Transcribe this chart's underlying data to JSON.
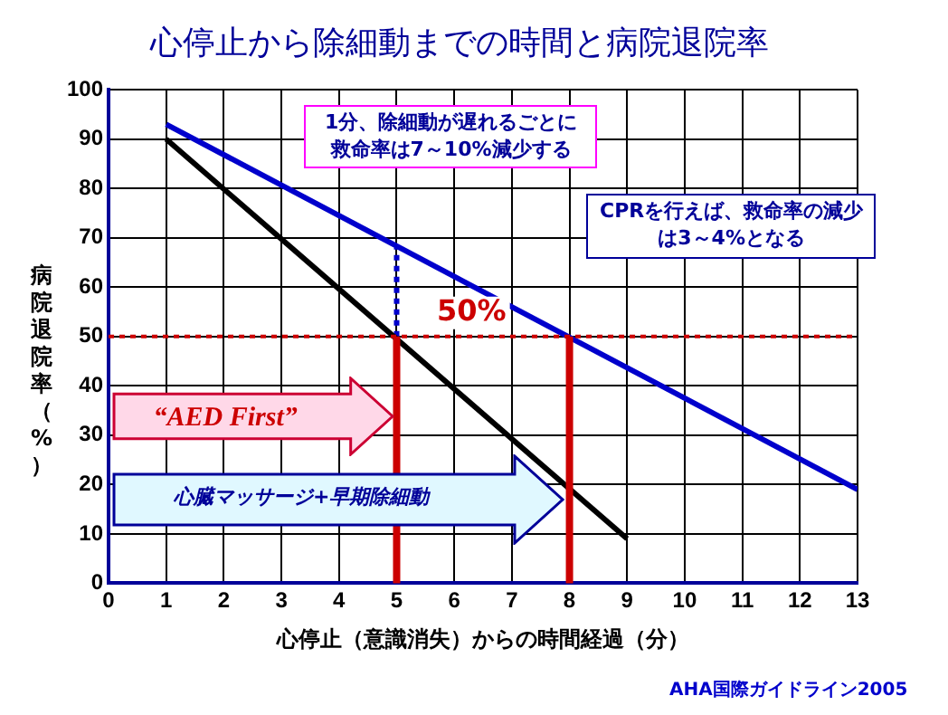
{
  "chart_data": {
    "type": "line",
    "title": "心停止から除細動までの時間と病院退院率",
    "xlabel": "心停止（意識消失）からの時間経過（分）",
    "ylabel": "病院退院率（%）",
    "series": [
      {
        "color": "#000000",
        "x": [
          1,
          9
        ],
        "values": [
          90,
          9
        ]
      },
      {
        "color": "#0000cc",
        "x": [
          1,
          13
        ],
        "values": [
          93,
          19
        ]
      },
      {
        "color": "#0000cc",
        "x": [
          5,
          5
        ],
        "values": [
          50,
          68
        ],
        "line_style": "dotted"
      }
    ],
    "xlim": [
      0,
      13
    ],
    "xticks": [
      0,
      1,
      2,
      3,
      4,
      5,
      6,
      7,
      8,
      9,
      10,
      11,
      12,
      13
    ],
    "ylim": [
      0,
      100
    ],
    "yticks": [
      0,
      10,
      20,
      30,
      40,
      50,
      60,
      70,
      80,
      90,
      100
    ],
    "grid": true,
    "legend": false,
    "marker": "none",
    "line_style": "solid",
    "ref_lines": [
      {
        "axis": "y",
        "value": 50,
        "label": "50%",
        "color": "#cc0000",
        "line_style": "dotted"
      },
      {
        "axis": "x",
        "value": 5,
        "color": "#cc0000",
        "line_style": "solid"
      },
      {
        "axis": "x",
        "value": 8,
        "color": "#cc0000",
        "line_style": "solid"
      }
    ],
    "annotations": [
      "1分、除細動が遅れるごとに救命率は7～10%減少する",
      "CPRを行えば、救命率の減少は3～4%となる",
      "“AED First”",
      "心臓マッサージ+早期除細動",
      "AHA国際ガイドライン2005"
    ]
  }
}
